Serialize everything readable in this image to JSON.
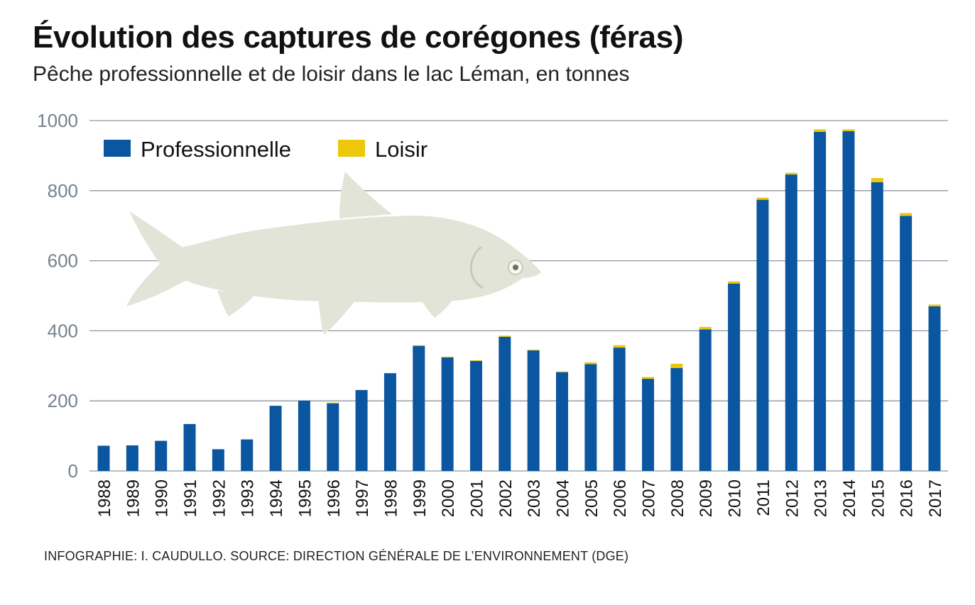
{
  "header": {
    "title": "Évolution des captures de corégones (féras)",
    "subtitle": "Pêche professionnelle et de loisir dans le lac Léman, en tonnes"
  },
  "footer": {
    "source": "INFOGRAPHIE: I. CAUDULLO. SOURCE: DIRECTION GÉNÉRALE DE L’ENVIRONNEMENT  (DGE)"
  },
  "illustration": {
    "name": "fish-illustration",
    "color": "#e2e4d7"
  },
  "colors": {
    "professionnelle": "#0a56a0",
    "loisir": "#ecc70a",
    "grid": "#8c96a0",
    "tick_text": "#76828e"
  },
  "chart_data": {
    "type": "bar",
    "stacked": true,
    "title": "Évolution des captures de corégones (féras)",
    "subtitle": "Pêche professionnelle et de loisir dans le lac Léman, en tonnes",
    "xlabel": "",
    "ylabel": "tonnes",
    "ylim": [
      0,
      1000
    ],
    "yticks": [
      0,
      200,
      400,
      600,
      800,
      1000
    ],
    "grid": true,
    "legend_position": "top-left",
    "categories": [
      "1988",
      "1989",
      "1990",
      "1991",
      "1992",
      "1993",
      "1994",
      "1995",
      "1996",
      "1997",
      "1998",
      "1999",
      "2000",
      "2001",
      "2002",
      "2003",
      "2004",
      "2005",
      "2006",
      "2007",
      "2008",
      "2009",
      "2010",
      "2011",
      "2012",
      "2013",
      "2014",
      "2015",
      "2016",
      "2017"
    ],
    "series": [
      {
        "name": "Professionnelle",
        "color": "#0a56a0",
        "values": [
          72,
          73,
          86,
          134,
          62,
          90,
          186,
          201,
          193,
          231,
          279,
          357,
          324,
          314,
          383,
          344,
          282,
          305,
          352,
          263,
          294,
          404,
          535,
          774,
          846,
          968,
          970,
          824,
          728,
          470
        ]
      },
      {
        "name": "Loisir",
        "color": "#ecc70a",
        "values": [
          0,
          0,
          0,
          0,
          0,
          0,
          0,
          0,
          2,
          0,
          0,
          2,
          2,
          2,
          3,
          2,
          2,
          5,
          7,
          5,
          12,
          7,
          6,
          6,
          5,
          7,
          5,
          12,
          8,
          5
        ]
      }
    ]
  }
}
